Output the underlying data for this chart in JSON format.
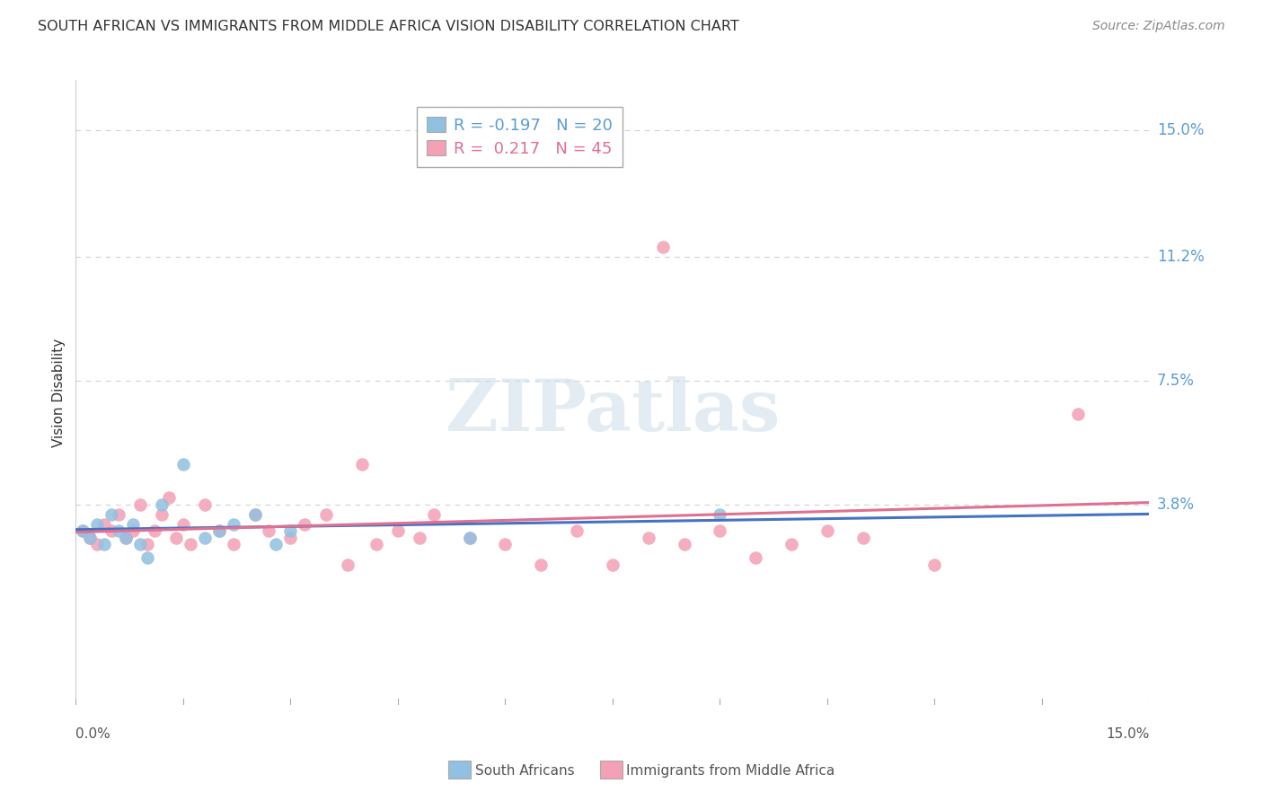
{
  "title": "SOUTH AFRICAN VS IMMIGRANTS FROM MIDDLE AFRICA VISION DISABILITY CORRELATION CHART",
  "source": "Source: ZipAtlas.com",
  "ylabel": "Vision Disability",
  "ytick_labels": [
    "15.0%",
    "11.2%",
    "7.5%",
    "3.8%"
  ],
  "ytick_values": [
    0.15,
    0.112,
    0.075,
    0.038
  ],
  "xtick_labels": [
    "0.0%",
    "15.0%"
  ],
  "xlim": [
    0.0,
    0.15
  ],
  "ylim": [
    -0.022,
    0.165
  ],
  "color_blue": "#92c0e0",
  "color_pink": "#f4a0b5",
  "color_line_blue": "#4472c4",
  "color_line_pink": "#e07090",
  "color_axis_label": "#5b9bd5",
  "watermark_color": "#ccdde8",
  "south_africans_x": [
    0.001,
    0.002,
    0.003,
    0.004,
    0.005,
    0.006,
    0.007,
    0.008,
    0.009,
    0.01,
    0.012,
    0.015,
    0.018,
    0.02,
    0.022,
    0.025,
    0.028,
    0.03,
    0.055,
    0.09
  ],
  "south_africans_y": [
    0.03,
    0.028,
    0.032,
    0.026,
    0.035,
    0.03,
    0.028,
    0.032,
    0.026,
    0.022,
    0.038,
    0.05,
    0.028,
    0.03,
    0.032,
    0.035,
    0.026,
    0.03,
    0.028,
    0.035
  ],
  "immigrants_x": [
    0.001,
    0.002,
    0.003,
    0.004,
    0.005,
    0.006,
    0.007,
    0.008,
    0.009,
    0.01,
    0.011,
    0.012,
    0.013,
    0.014,
    0.015,
    0.016,
    0.018,
    0.02,
    0.022,
    0.025,
    0.027,
    0.03,
    0.032,
    0.035,
    0.038,
    0.04,
    0.042,
    0.045,
    0.048,
    0.05,
    0.055,
    0.06,
    0.065,
    0.07,
    0.075,
    0.08,
    0.082,
    0.085,
    0.09,
    0.095,
    0.1,
    0.105,
    0.11,
    0.12,
    0.14
  ],
  "immigrants_y": [
    0.03,
    0.028,
    0.026,
    0.032,
    0.03,
    0.035,
    0.028,
    0.03,
    0.038,
    0.026,
    0.03,
    0.035,
    0.04,
    0.028,
    0.032,
    0.026,
    0.038,
    0.03,
    0.026,
    0.035,
    0.03,
    0.028,
    0.032,
    0.035,
    0.02,
    0.05,
    0.026,
    0.03,
    0.028,
    0.035,
    0.028,
    0.026,
    0.02,
    0.03,
    0.02,
    0.028,
    0.115,
    0.026,
    0.03,
    0.022,
    0.026,
    0.03,
    0.028,
    0.02,
    0.065
  ]
}
